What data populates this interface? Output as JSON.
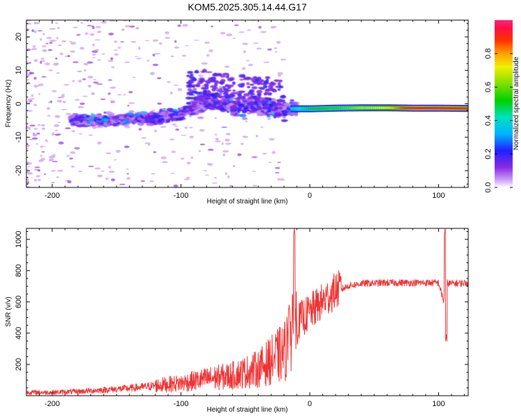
{
  "title": "KOM5.2025.305.14.44.G17",
  "colors": {
    "frame": "#000000",
    "snr_line": "#ee3333",
    "low_amplitude": "#c8a0f0",
    "mid_amplitude": "#5a18e0",
    "carrier_core": "#e03030"
  },
  "colorbar": {
    "label": "Normalized spectral amplitude",
    "range": [
      0.0,
      1.0
    ],
    "ticks": [
      "0.0",
      "0.2",
      "0.4",
      "0.6",
      "0.8"
    ],
    "tick_values": [
      0.0,
      0.2,
      0.4,
      0.6,
      0.8
    ]
  },
  "chart_data": [
    {
      "type": "heatmap",
      "title": "KOM5.2025.305.14.44.G17",
      "xlabel": "Height of straight line (km)",
      "ylabel": "Frequency (Hz)",
      "xlim": [
        -220,
        123
      ],
      "ylim": [
        -25,
        25
      ],
      "xticks": [
        -200,
        -100,
        0,
        100
      ],
      "xtick_labels": [
        "-200",
        "-100",
        "0",
        "100"
      ],
      "yticks": [
        -20,
        -10,
        0,
        10,
        20
      ],
      "ytick_labels": [
        "-20",
        "-10",
        "0",
        "10",
        "20"
      ],
      "description_points": {
        "scatter_band_x": [
          -180,
          -160,
          -140,
          -120,
          -100,
          -80,
          -60,
          -40,
          -20,
          -10
        ],
        "scatter_band_center_hz": [
          -5,
          -5,
          -4.5,
          -4,
          -3,
          1,
          -1,
          0,
          -2,
          -1
        ],
        "carrier_x": [
          -15,
          0,
          20,
          40,
          60,
          80,
          100,
          123
        ],
        "carrier_hz": [
          -1.5,
          -1.5,
          -1.3,
          -1.2,
          -1.2,
          -1.3,
          -1.3,
          -1.4
        ],
        "carrier_amplitude": [
          0.35,
          0.5,
          0.55,
          0.65,
          0.75,
          0.95,
          0.95,
          0.9
        ]
      }
    },
    {
      "type": "line",
      "xlabel": "Height of straight line (km)",
      "ylabel": "SNR (v/v)",
      "xlim": [
        -220,
        123
      ],
      "ylim": [
        0,
        1070
      ],
      "xticks": [
        -200,
        -100,
        0,
        100
      ],
      "xtick_labels": [
        "-200",
        "-100",
        "0",
        "100"
      ],
      "yticks": [
        200,
        400,
        600,
        800,
        1000
      ],
      "ytick_labels": [
        "200",
        "400",
        "600",
        "800",
        "1000"
      ],
      "series": [
        {
          "name": "SNR",
          "x": [
            -220,
            -200,
            -180,
            -160,
            -140,
            -120,
            -100,
            -80,
            -60,
            -40,
            -30,
            -20,
            -12,
            -8,
            0,
            10,
            20,
            30,
            40,
            60,
            80,
            100,
            104,
            106,
            110,
            123
          ],
          "y": [
            20,
            20,
            25,
            35,
            45,
            60,
            75,
            100,
            120,
            160,
            210,
            260,
            380,
            470,
            520,
            590,
            660,
            700,
            715,
            720,
            720,
            720,
            600,
            720,
            715,
            720
          ],
          "spikes": [
            {
              "x": -12,
              "y": 1070
            },
            {
              "x": -16,
              "y": 580
            },
            {
              "x": 105,
              "y": 1070
            },
            {
              "x": 106,
              "y": 390
            }
          ]
        }
      ]
    }
  ]
}
